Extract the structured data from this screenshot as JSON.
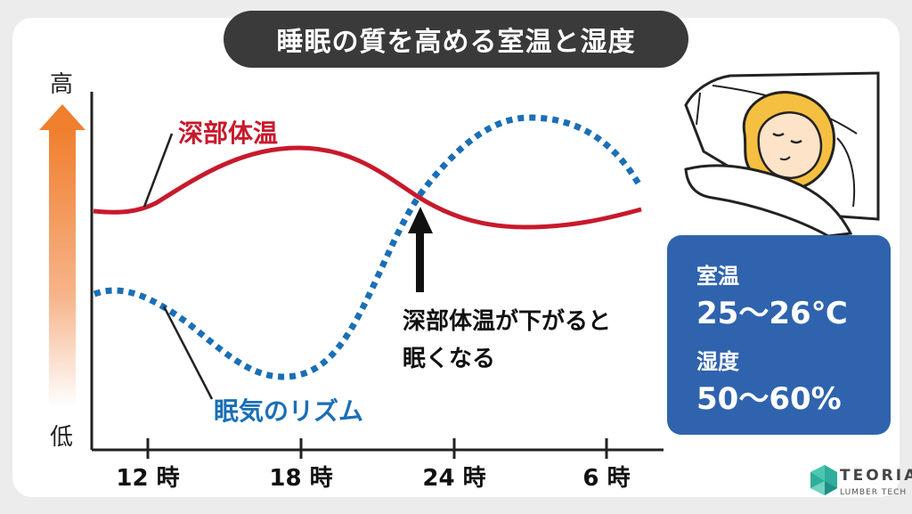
{
  "title": "睡眠の質を高める室温と湿度",
  "axis": {
    "high_label": "高",
    "low_label": "低",
    "ticks": [
      "12 時",
      "18 時",
      "24 時",
      "6 時"
    ]
  },
  "chart_data": {
    "type": "line",
    "x": [
      "12 時",
      "18 時",
      "24 時",
      "6 時"
    ],
    "series": [
      {
        "name": "深部体温",
        "style": "solid",
        "color": "#c8192c"
      },
      {
        "name": "眠気のリズム",
        "style": "dotted",
        "color": "#1a6fb6"
      }
    ]
  },
  "annotation": {
    "line1": "深部体温が下がると",
    "line2": "眠くなる"
  },
  "info": {
    "temp_label": "室温",
    "temp_value": "25〜26℃",
    "humidity_label": "湿度",
    "humidity_value": "50〜60%"
  },
  "logo": {
    "brand": "TEORIA",
    "sub": "LUMBER TECH"
  },
  "colors": {
    "temperature": "#c8192c",
    "sleepiness": "#1a6fb6",
    "arrow_gradient_top": "#f07f2e",
    "info_box": "#2f63ad"
  }
}
